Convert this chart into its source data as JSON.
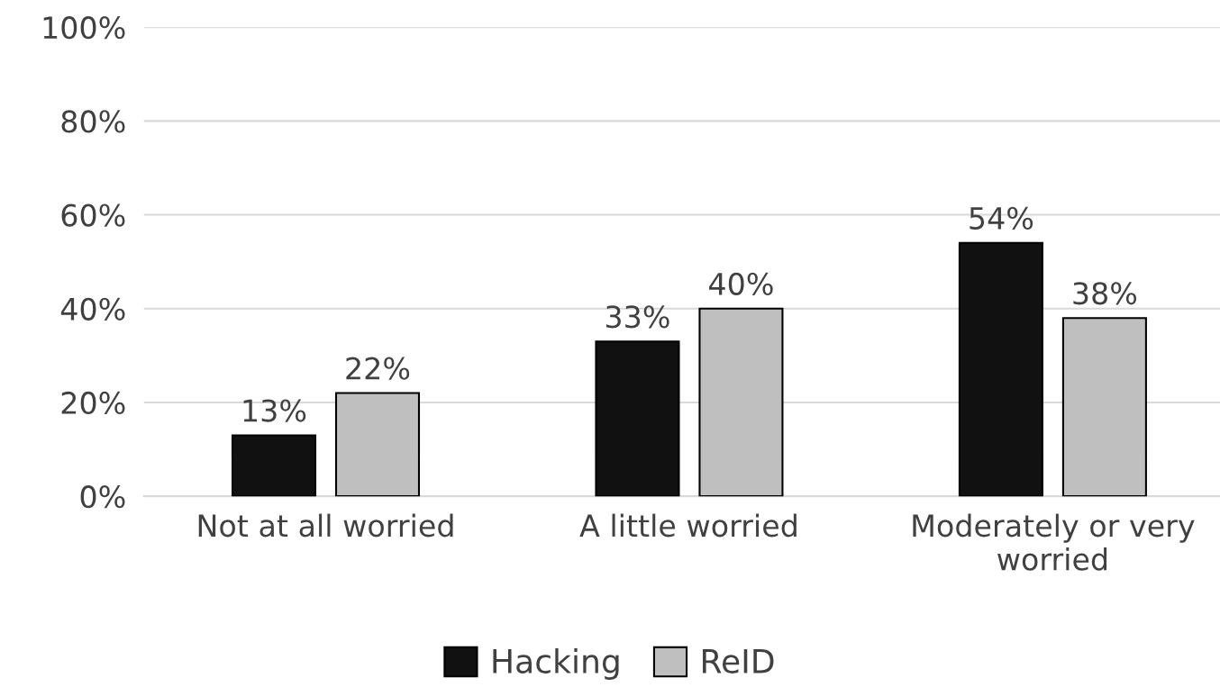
{
  "chart_data": {
    "type": "bar",
    "categories": [
      "Not at all worried",
      "A little worried",
      "Moderately or very\nworried"
    ],
    "series": [
      {
        "name": "Hacking",
        "color": "#111111",
        "values": [
          13,
          33,
          54
        ],
        "value_labels": [
          "13%",
          "33%",
          "54%"
        ]
      },
      {
        "name": "ReID",
        "color": "#bfbfbf",
        "values": [
          22,
          40,
          38
        ],
        "value_labels": [
          "22%",
          "40%",
          "38%"
        ]
      }
    ],
    "ylim": [
      0,
      100
    ],
    "yticks": [
      {
        "value": 0,
        "label": "0%"
      },
      {
        "value": 20,
        "label": "20%"
      },
      {
        "value": 40,
        "label": "40%"
      },
      {
        "value": 60,
        "label": "60%"
      },
      {
        "value": 80,
        "label": "80%"
      },
      {
        "value": 100,
        "label": "100%"
      }
    ],
    "grid": "y",
    "legend": "bottom"
  }
}
